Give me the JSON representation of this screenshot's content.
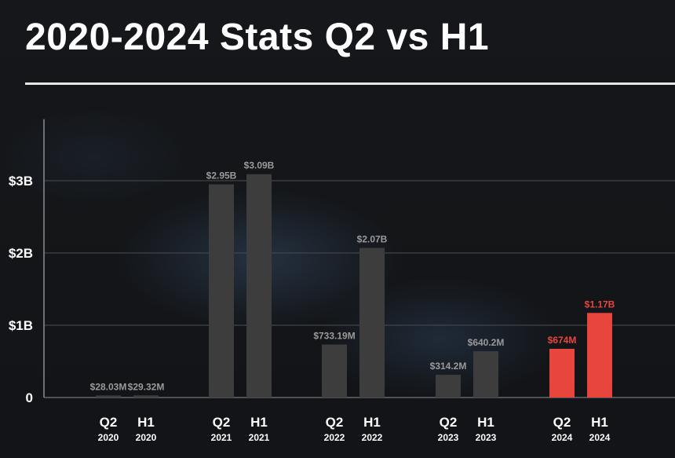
{
  "title": "2020-2024 Stats Q2 vs H1",
  "colors": {
    "bar_default": "#3d3d3d",
    "bar_highlight": "#e8453c",
    "label_default": "#9a9a9a",
    "label_highlight": "#e8453c",
    "grid": "#4a4d52",
    "axis": "#8a8d92"
  },
  "chart_data": {
    "type": "bar",
    "y_ticks": [
      {
        "value": 0,
        "label": "0"
      },
      {
        "value": 1,
        "label": "$1B"
      },
      {
        "value": 2,
        "label": "$2B"
      },
      {
        "value": 3,
        "label": "$3B"
      }
    ],
    "ylim": [
      0,
      3.85
    ],
    "y_unit": "billions USD",
    "grid": true,
    "groups": [
      {
        "year": "2020",
        "highlight": false,
        "bars": [
          {
            "period": "Q2",
            "value": 0.02803,
            "label": "$28.03M"
          },
          {
            "period": "H1",
            "value": 0.02932,
            "label": "$29.32M"
          }
        ]
      },
      {
        "year": "2021",
        "highlight": false,
        "bars": [
          {
            "period": "Q2",
            "value": 2.95,
            "label": "$2.95B"
          },
          {
            "period": "H1",
            "value": 3.09,
            "label": "$3.09B"
          }
        ]
      },
      {
        "year": "2022",
        "highlight": false,
        "bars": [
          {
            "period": "Q2",
            "value": 0.73319,
            "label": "$733.19M"
          },
          {
            "period": "H1",
            "value": 2.07,
            "label": "$2.07B"
          }
        ]
      },
      {
        "year": "2023",
        "highlight": false,
        "bars": [
          {
            "period": "Q2",
            "value": 0.3142,
            "label": "$314.2M"
          },
          {
            "period": "H1",
            "value": 0.6402,
            "label": "$640.2M"
          }
        ]
      },
      {
        "year": "2024",
        "highlight": true,
        "bars": [
          {
            "period": "Q2",
            "value": 0.674,
            "label": "$674M"
          },
          {
            "period": "H1",
            "value": 1.17,
            "label": "$1.17B"
          }
        ]
      }
    ]
  }
}
